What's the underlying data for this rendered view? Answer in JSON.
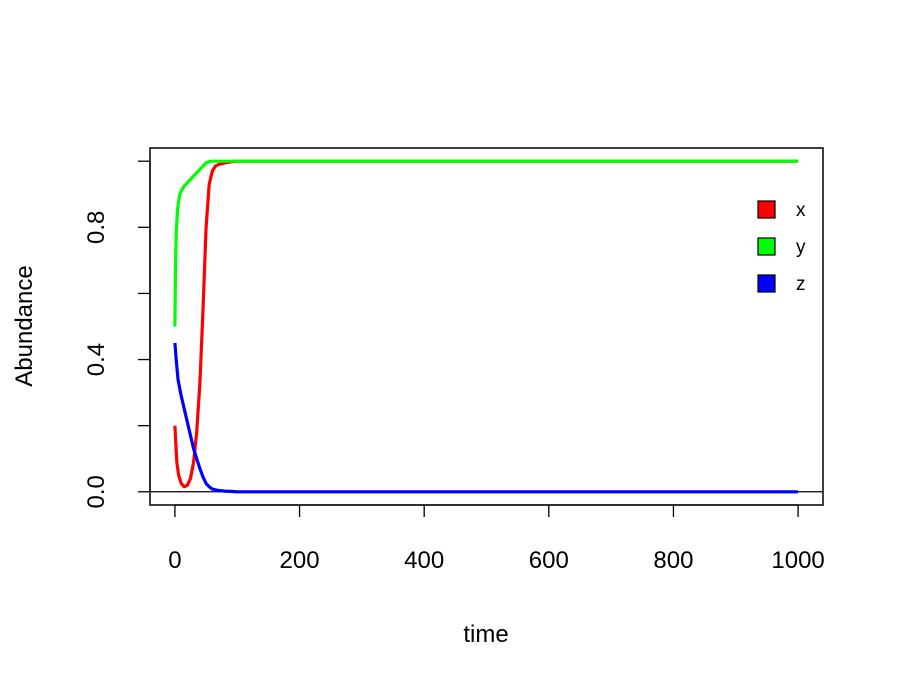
{
  "chart_data": {
    "type": "line",
    "title": "",
    "xlabel": "time",
    "ylabel": "Abundance",
    "xlim": [
      -40,
      1040
    ],
    "ylim": [
      -0.04,
      1.04
    ],
    "x_ticks": [
      0,
      200,
      400,
      600,
      800,
      1000
    ],
    "x_tick_labels": [
      "0",
      "200",
      "400",
      "600",
      "800",
      "1000"
    ],
    "y_ticks": [
      0,
      0.2,
      0.4,
      0.6,
      0.8,
      1.0
    ],
    "y_tick_labels": [
      "0.0",
      "",
      "0.4",
      "",
      "0.8",
      ""
    ],
    "reference_line_y": 0,
    "grid": false,
    "legend_position": "top-right",
    "series": [
      {
        "name": "x",
        "color": "#ff0000",
        "x": [
          0,
          3,
          6,
          10,
          15,
          20,
          25,
          30,
          35,
          40,
          45,
          50,
          55,
          60,
          65,
          70,
          80,
          90,
          100,
          150,
          200,
          400,
          600,
          800,
          1000
        ],
        "y": [
          0.2,
          0.09,
          0.05,
          0.025,
          0.015,
          0.02,
          0.04,
          0.09,
          0.18,
          0.33,
          0.55,
          0.8,
          0.93,
          0.97,
          0.985,
          0.99,
          0.995,
          0.998,
          1.0,
          1.0,
          1.0,
          1.0,
          1.0,
          1.0,
          1.0
        ]
      },
      {
        "name": "y",
        "color": "#00ff00",
        "x": [
          0,
          1,
          2,
          4,
          6,
          8,
          10,
          15,
          20,
          25,
          30,
          35,
          40,
          45,
          50,
          55,
          60,
          80,
          100,
          200,
          400,
          600,
          800,
          1000
        ],
        "y": [
          0.5,
          0.68,
          0.78,
          0.85,
          0.88,
          0.9,
          0.91,
          0.925,
          0.935,
          0.945,
          0.955,
          0.965,
          0.975,
          0.985,
          0.995,
          0.999,
          1.0,
          1.0,
          1.0,
          1.0,
          1.0,
          1.0,
          1.0,
          1.0
        ]
      },
      {
        "name": "z",
        "color": "#0000ff",
        "x": [
          0,
          2,
          5,
          10,
          15,
          20,
          25,
          30,
          35,
          40,
          45,
          50,
          55,
          60,
          70,
          80,
          90,
          100,
          150,
          200,
          400,
          600,
          800,
          1000
        ],
        "y": [
          0.45,
          0.4,
          0.34,
          0.29,
          0.25,
          0.21,
          0.17,
          0.13,
          0.1,
          0.07,
          0.045,
          0.025,
          0.015,
          0.008,
          0.004,
          0.002,
          0.001,
          0.0,
          0.0,
          0.0,
          0.0,
          0.0,
          0.0,
          0.0
        ]
      }
    ]
  }
}
